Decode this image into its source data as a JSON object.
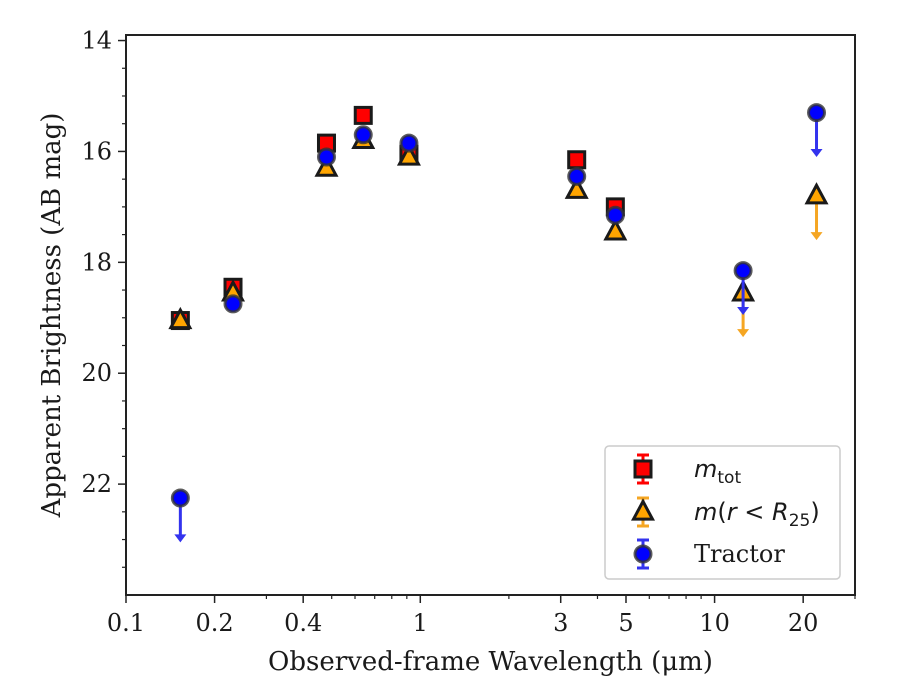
{
  "chart_data": {
    "type": "scatter",
    "title": "",
    "xlabel": "Observed-frame Wavelength (μm)",
    "ylabel": "Apparent Brightness (AB mag)",
    "xscale": "log",
    "xlim": [
      0.1,
      30
    ],
    "ylim": [
      24.0,
      13.9
    ],
    "y_inverted": true,
    "xticks": [
      {
        "value": 0.1,
        "label": "0.1"
      },
      {
        "value": 0.2,
        "label": "0.2"
      },
      {
        "value": 0.4,
        "label": "0.4"
      },
      {
        "value": 1,
        "label": "1"
      },
      {
        "value": 3,
        "label": "3"
      },
      {
        "value": 5,
        "label": "5"
      },
      {
        "value": 10,
        "label": "10"
      },
      {
        "value": 20,
        "label": "20"
      }
    ],
    "yticks": [
      {
        "value": 14,
        "label": "14"
      },
      {
        "value": 16,
        "label": "16"
      },
      {
        "value": 18,
        "label": "18"
      },
      {
        "value": 20,
        "label": "20"
      },
      {
        "value": 22,
        "label": "22"
      }
    ],
    "grid": false,
    "legend_position": "lower-right",
    "series": [
      {
        "name": "m_tot",
        "marker": "square",
        "color": "#ff0000",
        "points": [
          {
            "x": 0.153,
            "y": 19.05
          },
          {
            "x": 0.231,
            "y": 18.45
          },
          {
            "x": 0.48,
            "y": 15.85
          },
          {
            "x": 0.64,
            "y": 15.35
          },
          {
            "x": 0.915,
            "y": 16.05
          },
          {
            "x": 3.4,
            "y": 16.15
          },
          {
            "x": 4.6,
            "y": 17.0
          }
        ]
      },
      {
        "name": "m(r < R25)",
        "marker": "triangle",
        "color": "#ffa500",
        "points": [
          {
            "x": 0.153,
            "y": 19.05
          },
          {
            "x": 0.231,
            "y": 18.55
          },
          {
            "x": 0.48,
            "y": 16.3
          },
          {
            "x": 0.64,
            "y": 15.8
          },
          {
            "x": 0.915,
            "y": 16.1
          },
          {
            "x": 3.4,
            "y": 16.7
          },
          {
            "x": 4.6,
            "y": 17.45
          },
          {
            "x": 12.5,
            "y": 18.55,
            "upper_limit": true,
            "arrow_to": 19.35
          },
          {
            "x": 22.2,
            "y": 16.8,
            "upper_limit": true,
            "arrow_to": 17.6
          }
        ]
      },
      {
        "name": "Tractor",
        "marker": "circle",
        "color": "#0000ff",
        "points": [
          {
            "x": 0.153,
            "y": 22.25,
            "upper_limit": true,
            "arrow_to": 23.05
          },
          {
            "x": 0.231,
            "y": 18.75
          },
          {
            "x": 0.48,
            "y": 16.1
          },
          {
            "x": 0.64,
            "y": 15.7
          },
          {
            "x": 0.915,
            "y": 15.85
          },
          {
            "x": 3.4,
            "y": 16.45
          },
          {
            "x": 4.6,
            "y": 17.15
          },
          {
            "x": 12.5,
            "y": 18.15,
            "upper_limit": true,
            "arrow_to": 18.95
          },
          {
            "x": 22.2,
            "y": 15.3,
            "upper_limit": true,
            "arrow_to": 16.1
          }
        ]
      }
    ]
  }
}
